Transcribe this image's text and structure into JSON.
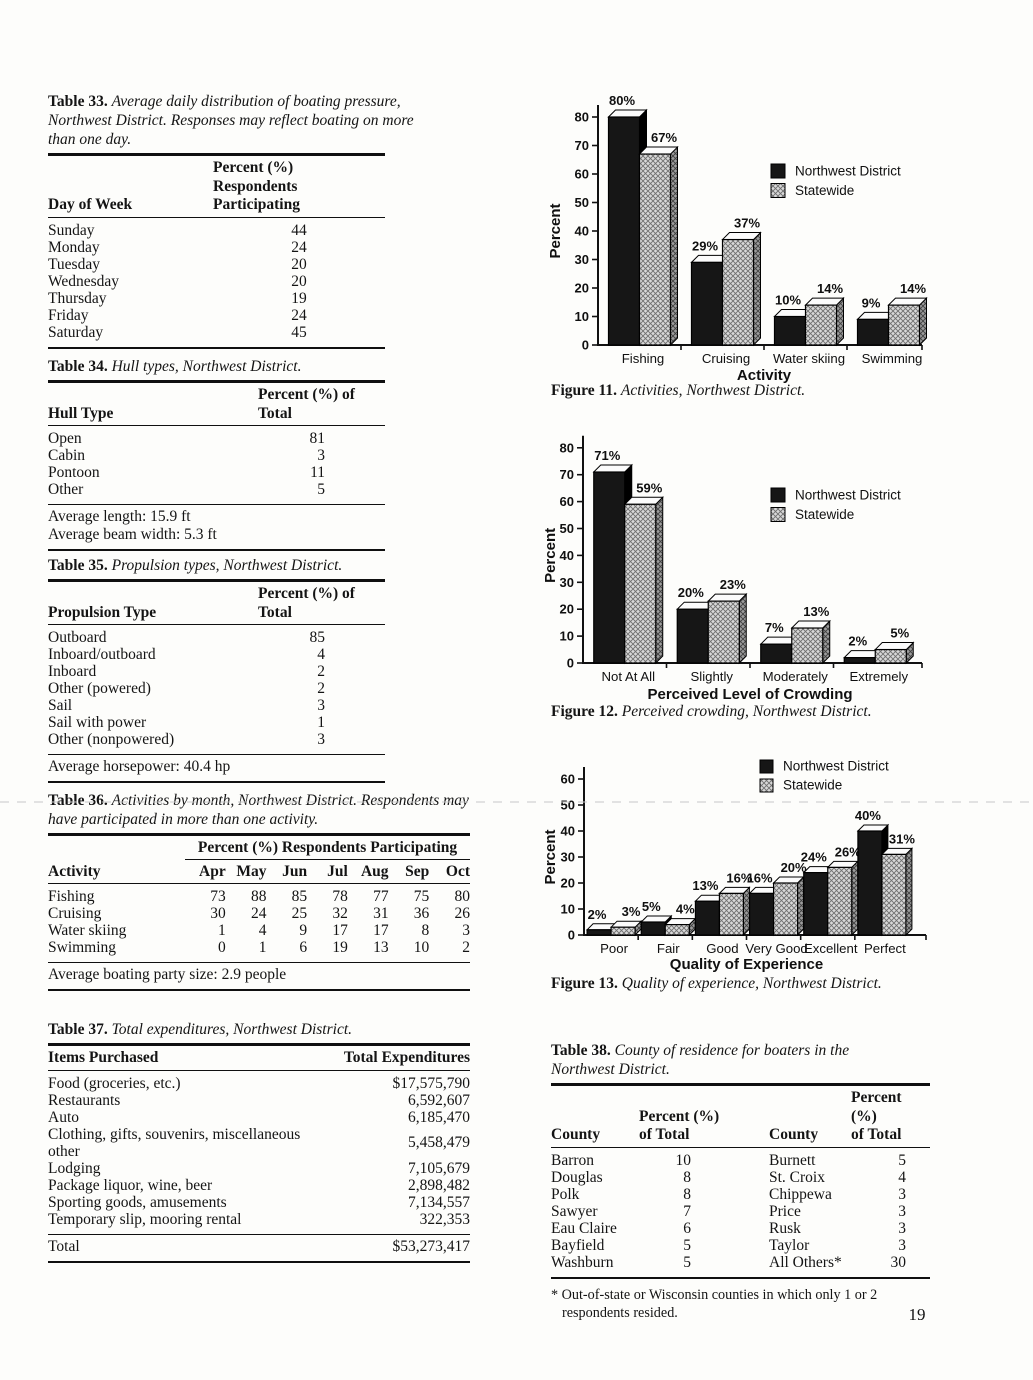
{
  "page_number": "19",
  "tables": {
    "t33": {
      "label": "Table 33.",
      "title": "Average daily distribution of boating pressure, Northwest District. Responses may reflect boating on more than one day.",
      "col_day": "Day of Week",
      "col_pct_line1": "Percent (%)",
      "col_pct_line2": "Respondents Participating",
      "rows": [
        [
          "Sunday",
          "44"
        ],
        [
          "Monday",
          "24"
        ],
        [
          "Tuesday",
          "20"
        ],
        [
          "Wednesday",
          "20"
        ],
        [
          "Thursday",
          "19"
        ],
        [
          "Friday",
          "24"
        ],
        [
          "Saturday",
          "45"
        ]
      ]
    },
    "t34": {
      "label": "Table 34.",
      "title": "Hull types, Northwest District.",
      "col1": "Hull Type",
      "col2": "Percent (%) of Total",
      "rows": [
        [
          "Open",
          "81"
        ],
        [
          "Cabin",
          "3"
        ],
        [
          "Pontoon",
          "11"
        ],
        [
          "Other",
          "5"
        ]
      ],
      "notes": [
        "Average length:  15.9 ft",
        "Average beam width:  5.3 ft"
      ]
    },
    "t35": {
      "label": "Table 35.",
      "title": "Propulsion types, Northwest District.",
      "col1": "Propulsion Type",
      "col2": "Percent (%) of Total",
      "rows": [
        [
          "Outboard",
          "85"
        ],
        [
          "Inboard/outboard",
          "4"
        ],
        [
          "Inboard",
          "2"
        ],
        [
          "Other (powered)",
          "2"
        ],
        [
          "Sail",
          "3"
        ],
        [
          "Sail with power",
          "1"
        ],
        [
          "Other (nonpowered)",
          "3"
        ]
      ],
      "notes": [
        "Average horsepower:  40.4 hp"
      ]
    },
    "t36": {
      "label": "Table 36.",
      "title": "Activities by month, Northwest District. Respondents may have participated in more than one activity.",
      "span_header": "Percent (%) Respondents Participating",
      "col1": "Activity",
      "months": [
        "Apr",
        "May",
        "Jun",
        "Jul",
        "Aug",
        "Sep",
        "Oct"
      ],
      "rows": [
        [
          "Fishing",
          "73",
          "88",
          "85",
          "78",
          "77",
          "75",
          "80"
        ],
        [
          "Cruising",
          "30",
          "24",
          "25",
          "32",
          "31",
          "36",
          "26"
        ],
        [
          "Water skiing",
          "1",
          "4",
          "9",
          "17",
          "17",
          "8",
          "3"
        ],
        [
          "Swimming",
          "0",
          "1",
          "6",
          "19",
          "13",
          "10",
          "2"
        ]
      ],
      "notes": [
        "Average boating party size:  2.9 people"
      ]
    },
    "t37": {
      "label": "Table 37.",
      "title": "Total expenditures, Northwest District.",
      "col1": "Items Purchased",
      "col2": "Total Expenditures",
      "rows": [
        [
          "Food (groceries, etc.)",
          "$17,575,790"
        ],
        [
          "Restaurants",
          "6,592,607"
        ],
        [
          "Auto",
          "6,185,470"
        ],
        [
          "Clothing, gifts, souvenirs, miscellaneous other",
          "5,458,479"
        ],
        [
          "Lodging",
          "7,105,679"
        ],
        [
          "Package liquor, wine, beer",
          "2,898,482"
        ],
        [
          "Sporting goods, amusements",
          "7,134,557"
        ],
        [
          "Temporary slip, mooring rental",
          "322,353"
        ]
      ],
      "total_label": "Total",
      "total_value": "$53,273,417"
    },
    "t38": {
      "label": "Table 38.",
      "title": "County of residence for boaters in the Northwest District.",
      "col_county": "County",
      "col_pct_line1": "Percent (%)",
      "col_pct_line2": "of Total",
      "rows": [
        [
          "Barron",
          "10",
          "Burnett",
          "5"
        ],
        [
          "Douglas",
          "8",
          "St. Croix",
          "4"
        ],
        [
          "Polk",
          "8",
          "Chippewa",
          "3"
        ],
        [
          "Sawyer",
          "7",
          "Price",
          "3"
        ],
        [
          "Eau Claire",
          "6",
          "Rusk",
          "3"
        ],
        [
          "Bayfield",
          "5",
          "Taylor",
          "3"
        ],
        [
          "Washburn",
          "5",
          "All Others*",
          "30"
        ]
      ],
      "footnote_lines": [
        "* Out-of-state or Wisconsin counties in which only 1 or 2",
        "respondents resided."
      ]
    }
  },
  "chart_data": [
    {
      "id": "fig11",
      "type": "bar",
      "title": "",
      "categories": [
        "Fishing",
        "Cruising",
        "Water skiing",
        "Swimming"
      ],
      "series": [
        {
          "name": "Northwest District",
          "values": [
            80,
            29,
            10,
            9
          ]
        },
        {
          "name": "Statewide",
          "values": [
            67,
            37,
            14,
            14
          ]
        }
      ],
      "ylabel": "Percent",
      "xlabel": "Activity",
      "ylim": [
        0,
        80
      ],
      "ytick_step": 10,
      "value_suffix": "%",
      "grid": false,
      "legend_position": "upper-right-inside",
      "caption_label": "Figure 11.",
      "caption": "Activities, Northwest District."
    },
    {
      "id": "fig12",
      "type": "bar",
      "title": "",
      "categories": [
        "Not At All",
        "Slightly",
        "Moderately",
        "Extremely"
      ],
      "series": [
        {
          "name": "Northwest District",
          "values": [
            71,
            20,
            7,
            2
          ]
        },
        {
          "name": "Statewide",
          "values": [
            59,
            23,
            13,
            5
          ]
        }
      ],
      "ylabel": "Percent",
      "xlabel": "Perceived Level of Crowding",
      "ylim": [
        0,
        80
      ],
      "ytick_step": 10,
      "value_suffix": "%",
      "grid": false,
      "legend_position": "upper-right-inside",
      "caption_label": "Figure 12.",
      "caption": "Perceived crowding, Northwest District."
    },
    {
      "id": "fig13",
      "type": "bar",
      "title": "",
      "categories": [
        "Poor",
        "Fair",
        "Good",
        "Very Good",
        "Excellent",
        "Perfect"
      ],
      "series": [
        {
          "name": "Northwest District",
          "values": [
            2,
            5,
            13,
            16,
            24,
            40
          ]
        },
        {
          "name": "Statewide",
          "values": [
            3,
            4,
            16,
            20,
            26,
            31
          ]
        }
      ],
      "ylabel": "Percent",
      "xlabel": "Quality of Experience",
      "ylim": [
        0,
        60
      ],
      "ytick_step": 10,
      "value_suffix": "%",
      "grid": false,
      "legend_position": "top-inside",
      "caption_label": "Figure 13.",
      "caption": "Quality of experience, Northwest District."
    }
  ],
  "colors": {
    "bar_primary": "#161616",
    "bar_secondary": "#d9d9d9",
    "hatch_line": "#6f6f6f",
    "bar_secondary_side": "#9c9c9c",
    "hatch_line_dark": "#3f3f3f",
    "axis": "#111111",
    "top_face": "#fbfbfb"
  }
}
